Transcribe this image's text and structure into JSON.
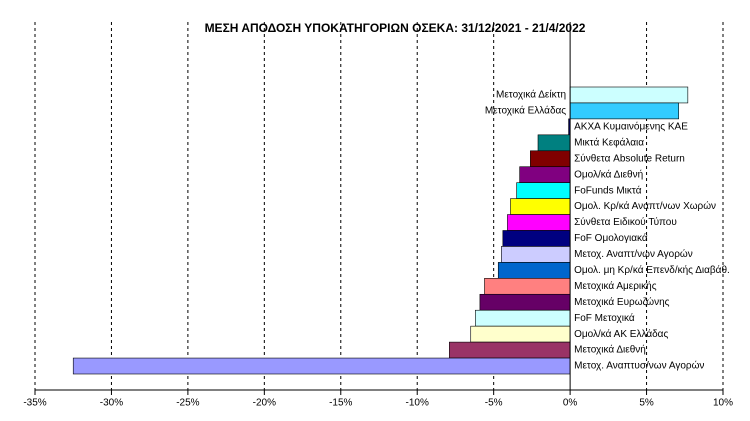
{
  "chart_data": {
    "type": "hbar",
    "title": "ΜΕΣΗ ΑΠΟΔΟΣΗ ΥΠΟΚΑΤΗΓΟΡΙΩΝ  ΟΣΕΚΑ: 31/12/2021 - 21/4/2022",
    "categories": [
      "Μετοχικά Δείκτη",
      "Μετοχικά Ελλάδας",
      "ΑΚΧΑ Κυμαινόμενης ΚΑΕ",
      "Μικτά Κεφάλαια",
      "Σύνθετα Absolute Return",
      "Ομολ/κά Διεθνή",
      "FoFunds Μικτά",
      "Ομολ. Κρ/κά Αναπτ/νων Χωρών",
      "Σύνθετα Ειδικού Τύπου",
      "FoF Ομολογιακά",
      "Μετοχ. Αναπτ/νων Αγορών",
      "Ομολ. μη Κρ/κά Επενδ/κής Διαβάθ.",
      "Μετοχικά Αμερικής",
      "Μετοχικά Ευρωζώνης",
      "FoF Μετοχικά",
      "Ομολ/κά ΑΚ Ελλάδας",
      "Μετοχικά Διεθνή",
      "Μετοχ. Αναπτυσ/νων Αγορών"
    ],
    "values": [
      7.7,
      7.1,
      -0.1,
      -2.1,
      -2.6,
      -3.3,
      -3.5,
      -3.9,
      -4.1,
      -4.4,
      -4.5,
      -4.7,
      -5.6,
      -5.9,
      -6.2,
      -6.5,
      -7.9,
      -32.5
    ],
    "colors": [
      "#ccffff",
      "#33ccff",
      "#000080",
      "#008080",
      "#800000",
      "#800080",
      "#00ffff",
      "#ffff00",
      "#ff00ff",
      "#000080",
      "#ccccff",
      "#0066cc",
      "#ff8080",
      "#660066",
      "#ccffff",
      "#ffffcc",
      "#993366",
      "#9999ff"
    ],
    "xlim": [
      -35,
      10
    ],
    "xticks": [
      {
        "value": -35,
        "label": "-35%"
      },
      {
        "value": -30,
        "label": "-30%"
      },
      {
        "value": -25,
        "label": "-25%"
      },
      {
        "value": -20,
        "label": "-20%"
      },
      {
        "value": -15,
        "label": "-15%"
      },
      {
        "value": -10,
        "label": "-10%"
      },
      {
        "value": -5,
        "label": "-5%"
      },
      {
        "value": 0,
        "label": "0%"
      },
      {
        "value": 5,
        "label": "5%"
      },
      {
        "value": 10,
        "label": "10%"
      }
    ],
    "grid": true
  }
}
